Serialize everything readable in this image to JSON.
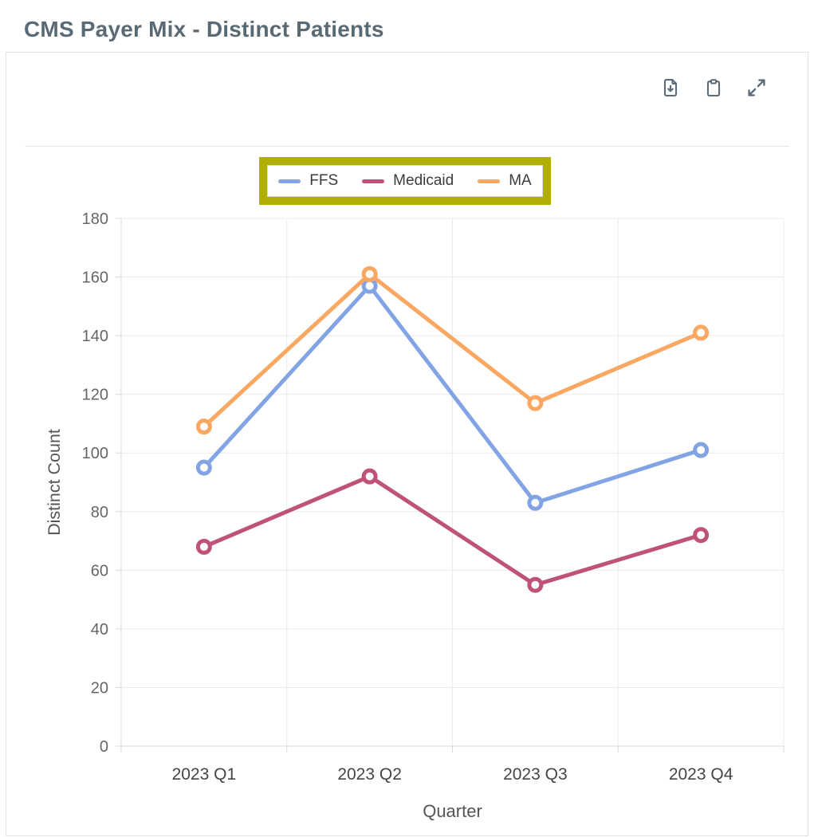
{
  "page_title": "CMS Payer Mix - Distinct Patients",
  "toolbar": {
    "icons": [
      "download-icon",
      "clipboard-icon",
      "expand-icon"
    ]
  },
  "colors": {
    "title": "#5A6A74",
    "icon": "#5A6B77",
    "card_border": "#DFE3E7",
    "grid": "#ebebeb",
    "axis": "#d9d9d9",
    "tick_label": "#666666",
    "category_label": "#454545",
    "axis_title": "#555555",
    "legend_text": "#3C3C3C",
    "legend_box_border": "#DBDBDB",
    "legend_highlight": "#B1AE04"
  },
  "chart_data": {
    "type": "line",
    "title": "CMS Payer Mix - Distinct Patients",
    "categories": [
      "2023 Q1",
      "2023 Q2",
      "2023 Q3",
      "2023 Q4"
    ],
    "series": [
      {
        "name": "FFS",
        "color": "#82A4E4",
        "values": [
          95,
          157,
          83,
          101
        ]
      },
      {
        "name": "Medicaid",
        "color": "#BE5277",
        "values": [
          68,
          92,
          55,
          72
        ]
      },
      {
        "name": "MA",
        "color": "#F9A761",
        "values": [
          109,
          161,
          117,
          141
        ]
      }
    ],
    "xlabel": "Quarter",
    "ylabel": "Distinct Count",
    "ylim": [
      0,
      180
    ],
    "ytick_step": 20,
    "grid": true,
    "legend_position": "top",
    "legend_highlighted": true,
    "markers": "open-circle"
  }
}
